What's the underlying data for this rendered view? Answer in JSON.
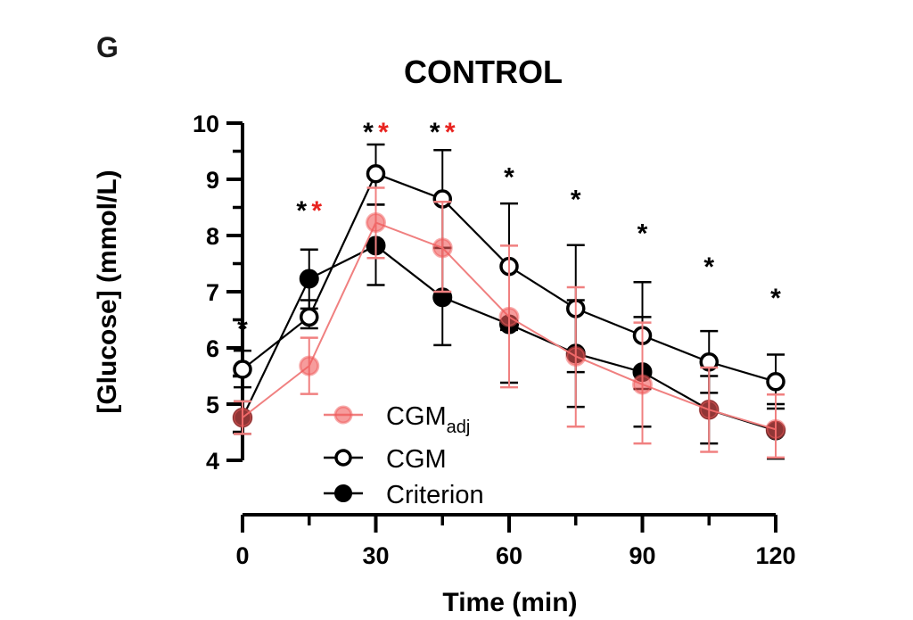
{
  "chart_data": {
    "type": "line",
    "panel_label": "G",
    "title": "CONTROL",
    "xlabel": "Time (min)",
    "ylabel": "[Glucose] (mmol/L)",
    "xlim": [
      0,
      120
    ],
    "ylim": [
      4,
      10
    ],
    "x_ticks": [
      0,
      30,
      60,
      90,
      120
    ],
    "x_minor_ticks": [
      15,
      45,
      75,
      105
    ],
    "y_ticks": [
      4,
      5,
      6,
      7,
      8,
      9,
      10
    ],
    "y_minor_ticks": [
      4.5,
      5.5,
      6.5,
      7.5,
      8.5,
      9.5
    ],
    "grid": false,
    "legend_position": "bottom-left",
    "x": [
      0,
      15,
      30,
      45,
      60,
      75,
      90,
      105,
      120
    ],
    "series": [
      {
        "name": "CGM",
        "subscript": "adj",
        "key": "cgm_adj",
        "style": "filled-translucent",
        "color": "#f06a6a",
        "values": [
          4.76,
          5.68,
          8.23,
          7.78,
          6.55,
          5.85,
          5.35,
          4.9,
          4.55
        ],
        "err_low": [
          4.47,
          5.18,
          7.6,
          7.0,
          5.3,
          4.6,
          4.3,
          4.15,
          4.05
        ],
        "err_high": [
          5.05,
          6.18,
          8.85,
          8.6,
          7.82,
          7.08,
          6.45,
          5.65,
          5.17
        ]
      },
      {
        "name": "CGM",
        "subscript": "",
        "key": "cgm",
        "style": "open",
        "color": "#000000",
        "values": [
          5.62,
          6.55,
          9.1,
          8.65,
          7.45,
          6.7,
          6.22,
          5.75,
          5.4
        ],
        "err_low": [
          5.3,
          6.35,
          8.55,
          7.78,
          6.32,
          5.57,
          5.27,
          5.2,
          4.92
        ],
        "err_high": [
          5.95,
          6.85,
          9.62,
          9.52,
          8.57,
          7.83,
          7.17,
          6.3,
          5.88
        ]
      },
      {
        "name": "Criterion",
        "subscript": "",
        "key": "criterion",
        "style": "filled",
        "color": "#000000",
        "values": [
          4.76,
          7.23,
          7.82,
          6.9,
          6.42,
          5.9,
          5.57,
          4.9,
          4.53
        ],
        "err_low": [
          4.47,
          6.7,
          7.12,
          6.05,
          5.38,
          4.95,
          4.6,
          4.3,
          4.03
        ],
        "err_high": [
          5.05,
          7.75,
          8.55,
          7.78,
          7.48,
          6.85,
          6.55,
          5.5,
          5.0
        ]
      }
    ],
    "significance_markers": [
      {
        "x": 0,
        "y_value": 6.5,
        "marks": [
          {
            "text": "*",
            "color": "#000000"
          }
        ]
      },
      {
        "x": 15,
        "y_value": 8.6,
        "marks": [
          {
            "text": "*",
            "color": "#000000"
          },
          {
            "text": "*",
            "color": "#e8231f"
          }
        ]
      },
      {
        "x": 30,
        "y_value": 10.0,
        "marks": [
          {
            "text": "*",
            "color": "#000000"
          },
          {
            "text": "*",
            "color": "#e8231f"
          }
        ]
      },
      {
        "x": 45,
        "y_value": 10.0,
        "marks": [
          {
            "text": "*",
            "color": "#000000"
          },
          {
            "text": "*",
            "color": "#e8231f"
          }
        ]
      },
      {
        "x": 60,
        "y_value": 9.2,
        "marks": [
          {
            "text": "*",
            "color": "#000000"
          }
        ]
      },
      {
        "x": 75,
        "y_value": 8.8,
        "marks": [
          {
            "text": "*",
            "color": "#000000"
          }
        ]
      },
      {
        "x": 90,
        "y_value": 8.2,
        "marks": [
          {
            "text": "*",
            "color": "#000000"
          }
        ]
      },
      {
        "x": 105,
        "y_value": 7.6,
        "marks": [
          {
            "text": "*",
            "color": "#000000"
          }
        ]
      },
      {
        "x": 120,
        "y_value": 7.05,
        "marks": [
          {
            "text": "*",
            "color": "#000000"
          }
        ]
      }
    ]
  }
}
